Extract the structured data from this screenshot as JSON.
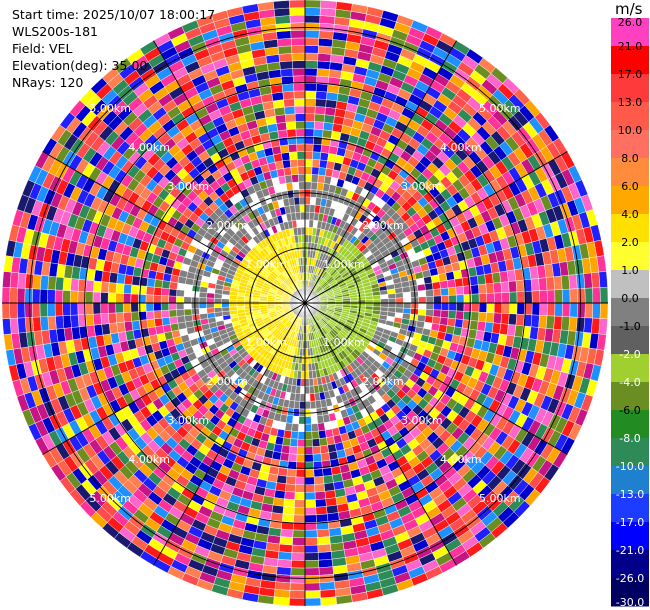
{
  "header": {
    "start_time": "Start time: 2025/10/07 18:00:17",
    "instrument": "WLS200s-181",
    "field": "Field: VEL",
    "elevation": "Elevation(deg): 35.00",
    "nrays": "NRays: 120"
  },
  "colorbar": {
    "unit": "m/s",
    "ticks": [
      "26.0",
      "21.0",
      "17.0",
      "13.0",
      "10.0",
      "8.0",
      "6.0",
      "4.0",
      "2.0",
      "1.0",
      "0.0",
      "-1.0",
      "-2.0",
      "-4.0",
      "-6.0",
      "-8.0",
      "-10.0",
      "-13.0",
      "-17.0",
      "-21.0",
      "-26.0",
      "-30.0"
    ],
    "colors": [
      "#ff40c0",
      "#ff0000",
      "#ff3a3a",
      "#ff5a4a",
      "#ff7060",
      "#ff8c3c",
      "#ffa800",
      "#ffe000",
      "#ffff30",
      "#c0c0c0",
      "#808080",
      "#606060",
      "#a0d030",
      "#6b8e23",
      "#228b22",
      "#2e8b57",
      "#2080d0",
      "#1e3cff",
      "#0000ff",
      "#00008b",
      "#000060",
      "#101050"
    ]
  },
  "chart_data": {
    "type": "ppi",
    "field": "VEL",
    "nrays": 120,
    "elevation_deg": 35.0,
    "range_rings_km": [
      1.0,
      2.0,
      3.0,
      4.0,
      5.0
    ],
    "ring_labels": [
      "1.00km",
      "2.00km",
      "3.00km",
      "4.00km",
      "5.00km"
    ],
    "value_range": [
      -30,
      30
    ],
    "unit": "m/s"
  }
}
